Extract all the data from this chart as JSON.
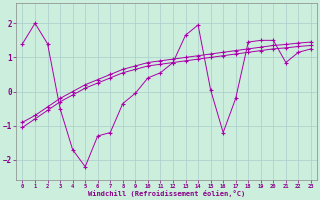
{
  "xlabel": "Windchill (Refroidissement éolien,°C)",
  "bg_color": "#cceedd",
  "line_color": "#aa00aa",
  "xlim": [
    -0.5,
    23.5
  ],
  "ylim": [
    -2.6,
    2.6
  ],
  "xticks": [
    0,
    1,
    2,
    3,
    4,
    5,
    6,
    7,
    8,
    9,
    10,
    11,
    12,
    13,
    14,
    15,
    16,
    17,
    18,
    19,
    20,
    21,
    22,
    23
  ],
  "yticks": [
    -2,
    -1,
    0,
    1,
    2
  ],
  "series1_x": [
    0,
    1,
    2,
    3,
    4,
    5,
    6,
    7,
    8,
    9,
    10,
    11,
    12,
    13,
    14,
    15,
    16,
    17,
    18,
    19,
    20,
    21,
    22,
    23
  ],
  "series1_y": [
    1.4,
    2.0,
    1.4,
    -0.5,
    -1.7,
    -2.2,
    -1.3,
    -1.2,
    -0.35,
    -0.05,
    0.4,
    0.55,
    0.85,
    1.65,
    1.95,
    0.05,
    -1.2,
    -0.2,
    1.45,
    1.5,
    1.5,
    0.85,
    1.15,
    1.25
  ],
  "series2_x": [
    0,
    1,
    2,
    3,
    4,
    5,
    6,
    7,
    8,
    9,
    10,
    11,
    12,
    13,
    14,
    15,
    16,
    17,
    18,
    19,
    20,
    21,
    22,
    23
  ],
  "series2_y": [
    -0.9,
    -0.7,
    -0.45,
    -0.2,
    0.0,
    0.2,
    0.35,
    0.5,
    0.65,
    0.75,
    0.85,
    0.9,
    0.95,
    1.0,
    1.05,
    1.1,
    1.15,
    1.2,
    1.25,
    1.3,
    1.35,
    1.38,
    1.42,
    1.45
  ],
  "series3_x": [
    0,
    1,
    2,
    3,
    4,
    5,
    6,
    7,
    8,
    9,
    10,
    11,
    12,
    13,
    14,
    15,
    16,
    17,
    18,
    19,
    20,
    21,
    22,
    23
  ],
  "series3_y": [
    -1.05,
    -0.8,
    -0.55,
    -0.3,
    -0.1,
    0.1,
    0.25,
    0.4,
    0.55,
    0.65,
    0.75,
    0.8,
    0.85,
    0.9,
    0.95,
    1.0,
    1.05,
    1.1,
    1.15,
    1.2,
    1.25,
    1.28,
    1.32,
    1.35
  ]
}
